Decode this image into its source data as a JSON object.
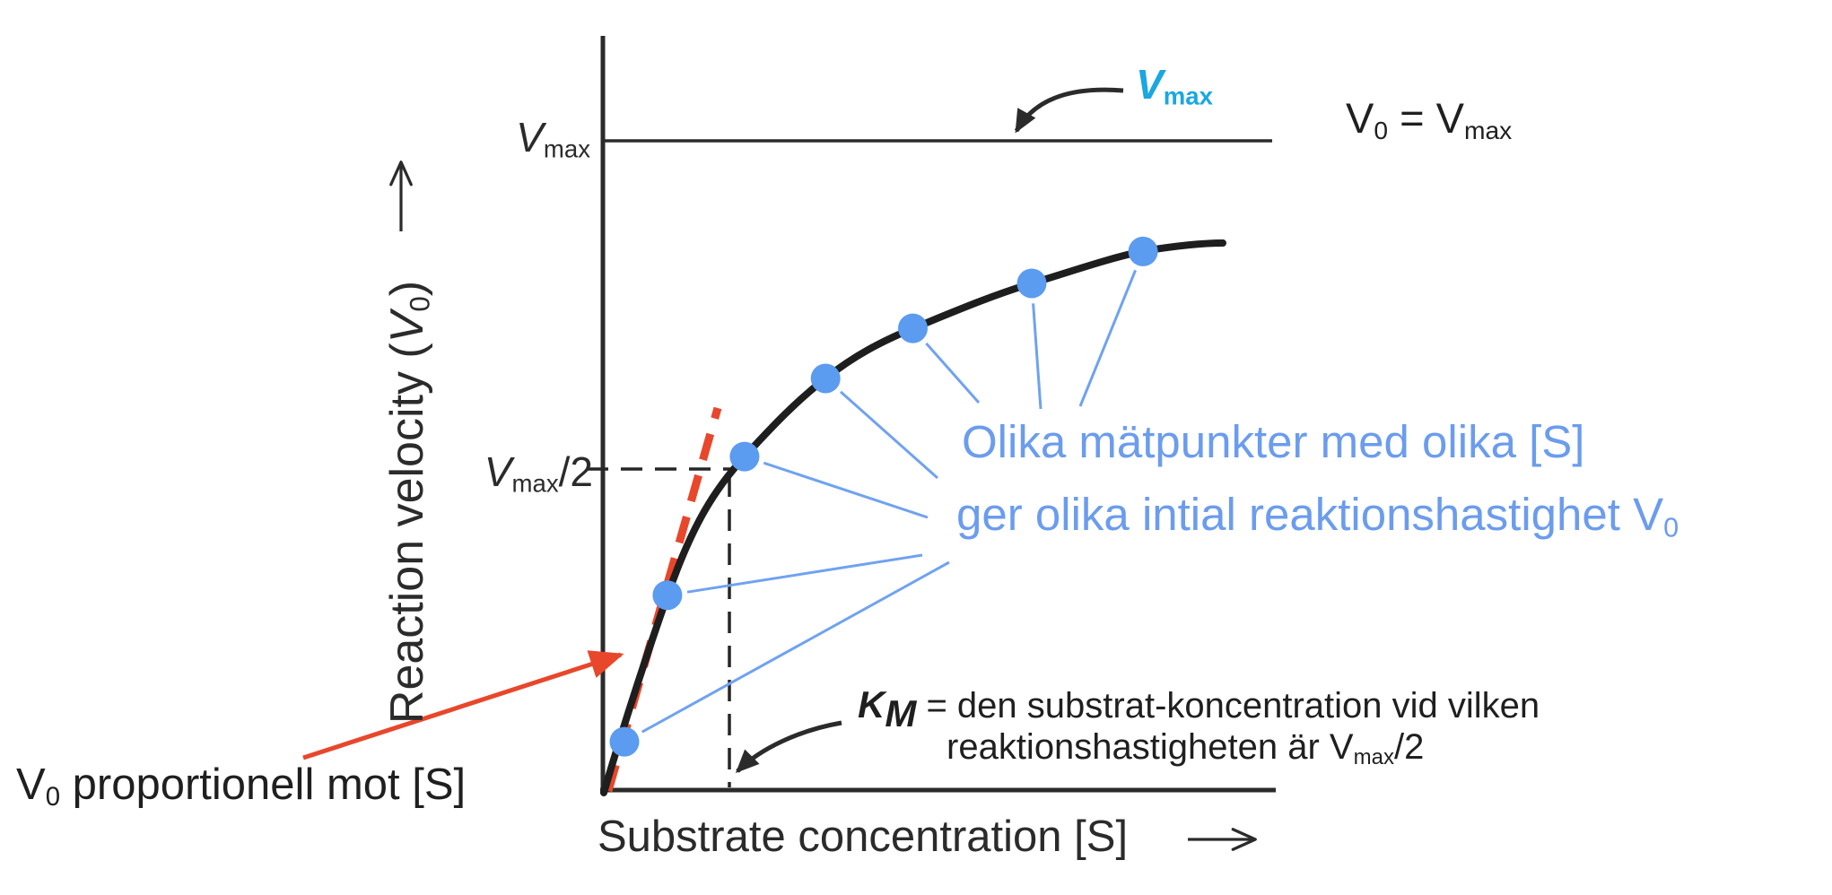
{
  "figure": {
    "description": "Michaelis-Menten enzyme kinetics plot with Swedish annotations",
    "background": "#ffffff"
  },
  "colors": {
    "ink": "#2b2b2b",
    "curve_black": "#1e1e1e",
    "point_blue": "#5B9BF0",
    "callout_line_blue": "#6FA2F0",
    "note_text_blue": "#6B9CEE",
    "vmax_cyan": "#1BA7E0",
    "red": "#E8472B"
  },
  "y_axis": {
    "title_pre": "Reaction velocity (",
    "title_var": "V",
    "title_sub": "0",
    "title_post": ")"
  },
  "x_axis": {
    "title": "Substrate concentration [S]"
  },
  "axis_labels": {
    "vmax": {
      "var": "V",
      "sub": "max"
    },
    "vmax_half": {
      "var": "V",
      "sub": "max",
      "suffix": "/2"
    }
  },
  "callouts": {
    "vmax_curve_label": {
      "var": "V",
      "sub": "max"
    },
    "v0_eq_vmax": {
      "v1": "V",
      "s1": "0",
      "mid": " = ",
      "v2": "V",
      "s2": "max"
    },
    "km_definition": {
      "var": "K",
      "sub": "M",
      "line1_rest": " = den substrat-koncentration vid vilken",
      "line2_pre": "reaktionshastigheten är V",
      "line2_sub": "max",
      "line2_suffix": "/2"
    },
    "measurement_note": {
      "line1": "Olika mätpunkter med olika [S]",
      "line2_pre": "ger olika intial reaktionshastighet V",
      "line2_sub": "0"
    },
    "v0_proportional": {
      "pre": "V",
      "sub": "0",
      "rest": " proportionell mot [S]"
    }
  },
  "chart_data": {
    "type": "line",
    "title": "",
    "xlabel": "Substrate concentration [S]",
    "ylabel": "Reaction velocity (V0)",
    "numeric_ticks": false,
    "grid": false,
    "curve_equation": "V0 = Vmax * [S] / (KM + [S])",
    "asymptote": "V0 = Vmax (horizontal line at top)",
    "reference_lines": [
      {
        "kind": "horizontal-solid",
        "y": "Vmax"
      },
      {
        "kind": "horizontal-dashed",
        "y": "Vmax/2"
      },
      {
        "kind": "vertical-dashed",
        "x": "KM"
      }
    ],
    "tangent_at_origin": "red dashed line: V0 proportional to [S] at low [S]",
    "units": {
      "s": "multiples of KM",
      "v": "fraction of Vmax"
    },
    "points": [
      {
        "s": 0.17,
        "v": 0.077
      },
      {
        "s": 0.51,
        "v": 0.302
      },
      {
        "s": 1.12,
        "v": 0.515
      },
      {
        "s": 1.76,
        "v": 0.635
      },
      {
        "s": 2.45,
        "v": 0.712
      },
      {
        "s": 3.39,
        "v": 0.781
      },
      {
        "s": 4.27,
        "v": 0.83
      }
    ]
  }
}
